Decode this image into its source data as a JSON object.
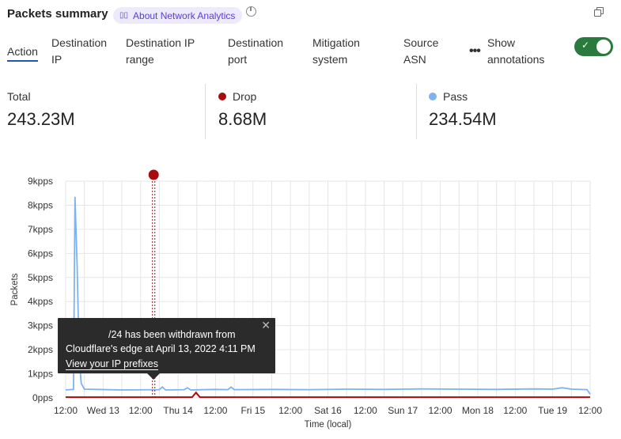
{
  "header": {
    "title": "Packets summary",
    "about_label": "About Network Analytics"
  },
  "tabs": [
    {
      "label": "Action",
      "active": true
    },
    {
      "label": "Destination IP"
    },
    {
      "label": "Destination IP range"
    },
    {
      "label": "Destination port"
    },
    {
      "label": "Mitigation system"
    },
    {
      "label": "Source ASN"
    }
  ],
  "more_label": "•••",
  "annotations_toggle": {
    "label": "Show annotations",
    "on": true,
    "color": "#2a7a3f"
  },
  "stats": {
    "total": {
      "label": "Total",
      "value": "243.23M"
    },
    "drop": {
      "label": "Drop",
      "value": "8.68M",
      "color": "#a80d0d"
    },
    "pass": {
      "label": "Pass",
      "value": "234.54M",
      "color": "#7fb2ee"
    }
  },
  "tooltip": {
    "line1": "/24 has been withdrawn from",
    "line2": "Cloudflare's edge at April 13, 2022 4:11 PM",
    "link": "View your IP prefixes"
  },
  "chart_data": {
    "type": "line",
    "xlabel": "Time (local)",
    "ylabel": "Packets",
    "ylim": [
      0,
      9
    ],
    "yticks": [
      "0pps",
      "1kpps",
      "2kpps",
      "3kpps",
      "4kpps",
      "5kpps",
      "6kpps",
      "7kpps",
      "8kpps",
      "9kpps"
    ],
    "xlim": [
      "2022-04-12T12:00",
      "2022-04-19T12:00"
    ],
    "xticks": [
      "12:00",
      "Wed 13",
      "12:00",
      "Thu 14",
      "12:00",
      "Fri 15",
      "12:00",
      "Sat 16",
      "12:00",
      "Sun 17",
      "12:00",
      "Mon 18",
      "12:00",
      "Tue 19",
      "12:00"
    ],
    "grid": true,
    "annotation_time": "2022-04-13T16:11",
    "series": [
      {
        "name": "Pass",
        "unit": "kpps",
        "color": "#7fb2ee",
        "points": [
          [
            "2022-04-12T12:00",
            0.33
          ],
          [
            "2022-04-12T14:30",
            0.35
          ],
          [
            "2022-04-12T15:00",
            8.35
          ],
          [
            "2022-04-12T15:40",
            5.5
          ],
          [
            "2022-04-12T16:20",
            1.6
          ],
          [
            "2022-04-12T17:00",
            0.6
          ],
          [
            "2022-04-12T18:00",
            0.36
          ],
          [
            "2022-04-13T06:00",
            0.33
          ],
          [
            "2022-04-13T18:00",
            0.34
          ],
          [
            "2022-04-13T19:00",
            0.45
          ],
          [
            "2022-04-13T20:00",
            0.33
          ],
          [
            "2022-04-14T02:00",
            0.34
          ],
          [
            "2022-04-14T03:00",
            0.42
          ],
          [
            "2022-04-14T04:00",
            0.33
          ],
          [
            "2022-04-14T12:00",
            0.35
          ],
          [
            "2022-04-14T16:00",
            0.34
          ],
          [
            "2022-04-14T17:00",
            0.45
          ],
          [
            "2022-04-14T18:00",
            0.34
          ],
          [
            "2022-04-15T06:00",
            0.35
          ],
          [
            "2022-04-15T18:00",
            0.34
          ],
          [
            "2022-04-16T06:00",
            0.36
          ],
          [
            "2022-04-16T18:00",
            0.35
          ],
          [
            "2022-04-17T06:00",
            0.37
          ],
          [
            "2022-04-17T18:00",
            0.36
          ],
          [
            "2022-04-18T06:00",
            0.35
          ],
          [
            "2022-04-18T18:00",
            0.37
          ],
          [
            "2022-04-19T00:00",
            0.36
          ],
          [
            "2022-04-19T03:00",
            0.42
          ],
          [
            "2022-04-19T06:00",
            0.36
          ],
          [
            "2022-04-19T11:00",
            0.34
          ],
          [
            "2022-04-19T12:00",
            0.15
          ]
        ]
      },
      {
        "name": "Drop",
        "unit": "kpps",
        "color": "#a80d0d",
        "points": [
          [
            "2022-04-12T12:00",
            0.03
          ],
          [
            "2022-04-14T04:30",
            0.03
          ],
          [
            "2022-04-14T05:45",
            0.22
          ],
          [
            "2022-04-14T07:00",
            0.03
          ],
          [
            "2022-04-19T12:00",
            0.03
          ]
        ]
      }
    ]
  }
}
